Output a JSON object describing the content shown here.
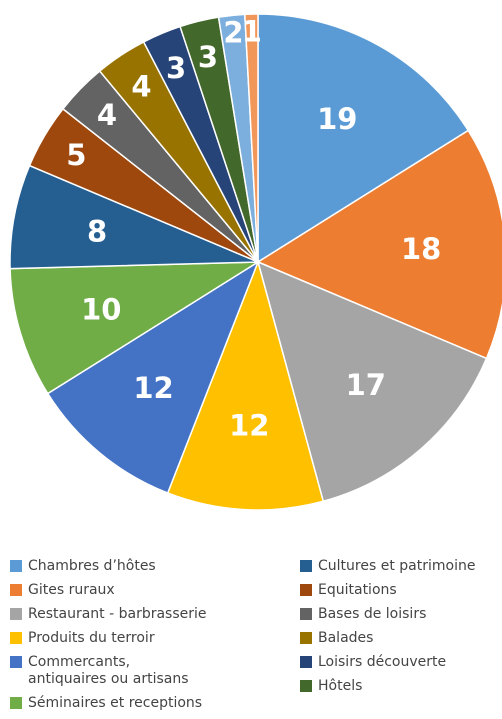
{
  "chart_data": {
    "type": "pie",
    "categories": [
      "Chambres d’hôtes",
      "Gites ruraux",
      "Restaurant - barbrasserie",
      "Produits du terroir",
      "Commercants, antiquaires ou artisans",
      "Séminaires et receptions",
      "Cultures et patrimoine",
      "Equitations",
      "Bases de loisirs",
      "Balades",
      "Loisirs découverte",
      "Hôtels",
      null,
      null
    ],
    "values": [
      19,
      18,
      17,
      12,
      12,
      10,
      8,
      5,
      4,
      4,
      3,
      3,
      2,
      1
    ],
    "colors": [
      "#5b9bd5",
      "#ed7d31",
      "#a5a5a5",
      "#ffc000",
      "#4472c4",
      "#70ad47",
      "#255e91",
      "#9e480e",
      "#636363",
      "#997300",
      "#264478",
      "#43682b",
      "#7cafdd",
      "#f1975a"
    ],
    "legend": "bottom"
  }
}
